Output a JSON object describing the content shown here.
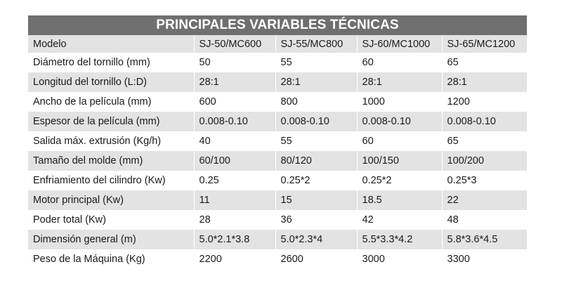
{
  "title": "PRINCIPALES VARIABLES TÉCNICAS",
  "header": {
    "label": "Modelo",
    "models": [
      "SJ-50/MC600",
      "SJ-55/MC800",
      "SJ-60/MC1000",
      "SJ-65/MC1200"
    ]
  },
  "rows": [
    {
      "label": "Diámetro del tornillo (mm)",
      "values": [
        "50",
        "55",
        "60",
        "65"
      ]
    },
    {
      "label": "Longitud del tornillo (L:D)",
      "values": [
        "28:1",
        "28:1",
        "28:1",
        "28:1"
      ]
    },
    {
      "label": "Ancho de la película (mm)",
      "values": [
        "600",
        "800",
        "1000",
        "1200"
      ]
    },
    {
      "label": "Espesor de la película (mm)",
      "values": [
        "0.008-0.10",
        "0.008-0.10",
        "0.008-0.10",
        "0.008-0.10"
      ]
    },
    {
      "label": "Salida máx. extrusión (Kg/h)",
      "values": [
        "40",
        "55",
        "60",
        "65"
      ]
    },
    {
      "label": "Tamaño del molde (mm)",
      "values": [
        "60/100",
        "80/120",
        "100/150",
        "100/200"
      ]
    },
    {
      "label": "Enfriamiento del cilindro (Kw)",
      "values": [
        "0.25",
        "0.25*2",
        "0.25*2",
        "0.25*3"
      ]
    },
    {
      "label": "Motor principal (Kw)",
      "values": [
        "11",
        "15",
        "18.5",
        "22"
      ]
    },
    {
      "label": "Poder total (Kw)",
      "values": [
        "28",
        "36",
        "42",
        "48"
      ]
    },
    {
      "label": "Dimensión general (m)",
      "values": [
        "5.0*2.1*3.8",
        "5.0*2.3*4",
        "5.5*3.3*4.2",
        "5.8*3.6*4.5"
      ]
    },
    {
      "label": "Peso de la Máquina (Kg)",
      "values": [
        "2200",
        "2600",
        "3000",
        "3300"
      ]
    }
  ]
}
